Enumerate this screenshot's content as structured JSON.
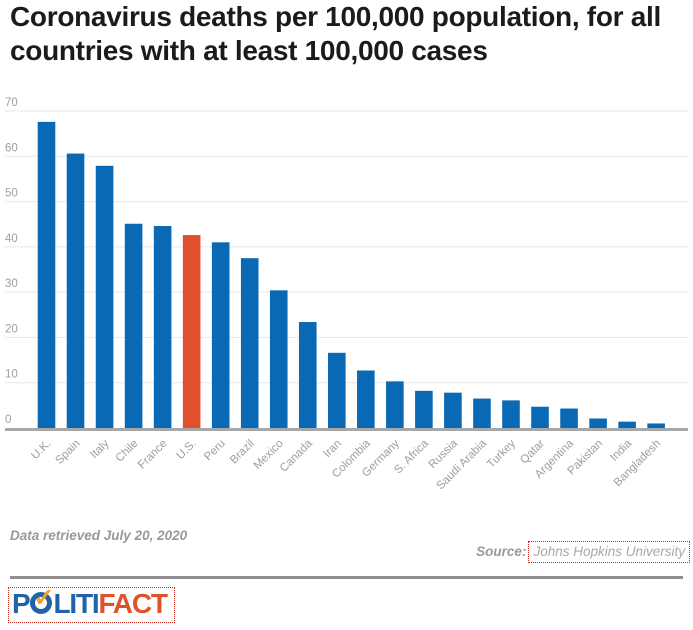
{
  "title": "Coronavirus deaths per 100,000 population, for all countries with at least 100,000 cases",
  "footer": {
    "data_note": "Data retrieved July 20, 2020",
    "source_label": "Source:",
    "source_link": "Johns Hopkins University"
  },
  "logo": {
    "part1": "P",
    "check": "✓",
    "part2": "LITI",
    "part3": "FACT"
  },
  "colors": {
    "bar": "#0a69b4",
    "highlight": "#e1502e",
    "gridline": "#e7e7e7",
    "axis_line": "#a8a8a8",
    "tick_label": "#9e9e9e",
    "title_text": "#1b1b1b",
    "footer_text": "#999999",
    "link_dotted_border": "#cc2b20",
    "logo_blue": "#2163a8",
    "logo_orange": "#e0512e",
    "logo_check_gold": "#f2a51c"
  },
  "chart_data": {
    "type": "bar",
    "title": "Coronavirus deaths per 100,000 population, for all countries with at least 100,000 cases",
    "categories": [
      "U.K.",
      "Spain",
      "Italy",
      "Chile",
      "France",
      "U.S.",
      "Peru",
      "Brazil",
      "Mexico",
      "Canada",
      "Iran",
      "Colombia",
      "Germany",
      "S. Africa",
      "Russia",
      "Saudi Arabia",
      "Turkey",
      "Qatar",
      "Argentina",
      "Pakistan",
      "India",
      "Bangladesh"
    ],
    "values": [
      67.6,
      60.6,
      57.9,
      45.1,
      44.6,
      42.6,
      41.0,
      37.5,
      30.4,
      23.4,
      16.6,
      12.7,
      10.3,
      8.2,
      7.8,
      6.5,
      6.1,
      4.7,
      4.3,
      2.1,
      1.4,
      1.0
    ],
    "highlight_category": "U.S.",
    "highlight_index": 5,
    "xlabel": "",
    "ylabel": "",
    "ylim": [
      0,
      70
    ],
    "yticks": [
      0,
      10,
      20,
      30,
      40,
      50,
      60,
      70
    ],
    "grid": true,
    "legend": false,
    "x_tick_rotation": -45
  }
}
